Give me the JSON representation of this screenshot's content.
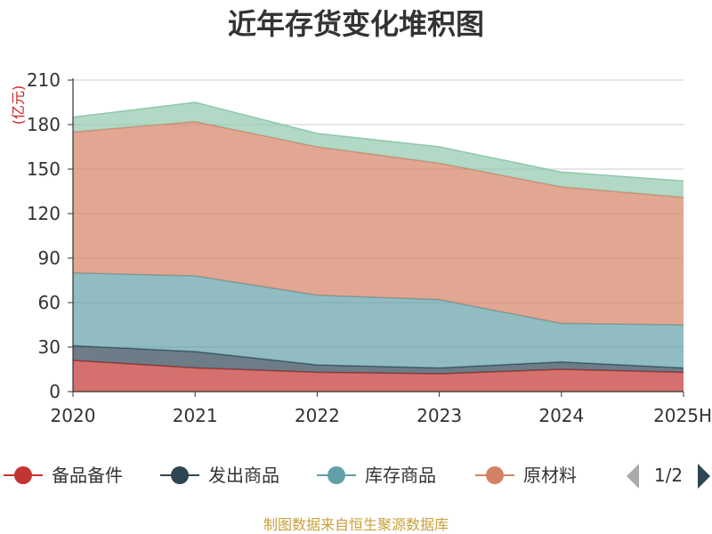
{
  "chart_data": {
    "type": "area",
    "stacked": true,
    "title": "近年存货变化堆积图",
    "unit_label": "(亿元)",
    "categories": [
      "2020",
      "2021",
      "2022",
      "2023",
      "2024",
      "2025H"
    ],
    "ylim": [
      0,
      210
    ],
    "yticks": [
      "0",
      "30",
      "60",
      "90",
      "120",
      "150",
      "180",
      "210"
    ],
    "grid": true,
    "legend_position": "bottom",
    "series": [
      {
        "name": "备品备件",
        "color": "#c23531",
        "values": [
          21,
          16,
          13,
          12,
          15,
          13
        ]
      },
      {
        "name": "发出商品",
        "color": "#2f4554",
        "values": [
          10,
          11,
          5,
          4,
          5,
          3
        ]
      },
      {
        "name": "库存商品",
        "color": "#61a0a8",
        "values": [
          49,
          51,
          47,
          46,
          26,
          29
        ]
      },
      {
        "name": "原材料",
        "color": "#d48265",
        "values": [
          95,
          104,
          100,
          92,
          92,
          86
        ]
      },
      {
        "name": "",
        "color": "#91c7ae",
        "values": [
          10,
          13,
          9,
          11,
          10,
          11
        ]
      }
    ],
    "legend_items": [
      {
        "name": "备品备件",
        "color": "#c23531"
      },
      {
        "name": "发出商品",
        "color": "#2f4554"
      },
      {
        "name": "库存商品",
        "color": "#61a0a8"
      },
      {
        "name": "原材料",
        "color": "#d48265"
      }
    ],
    "legend_page": "1/2",
    "source": "制图数据来自恒生聚源数据库"
  }
}
